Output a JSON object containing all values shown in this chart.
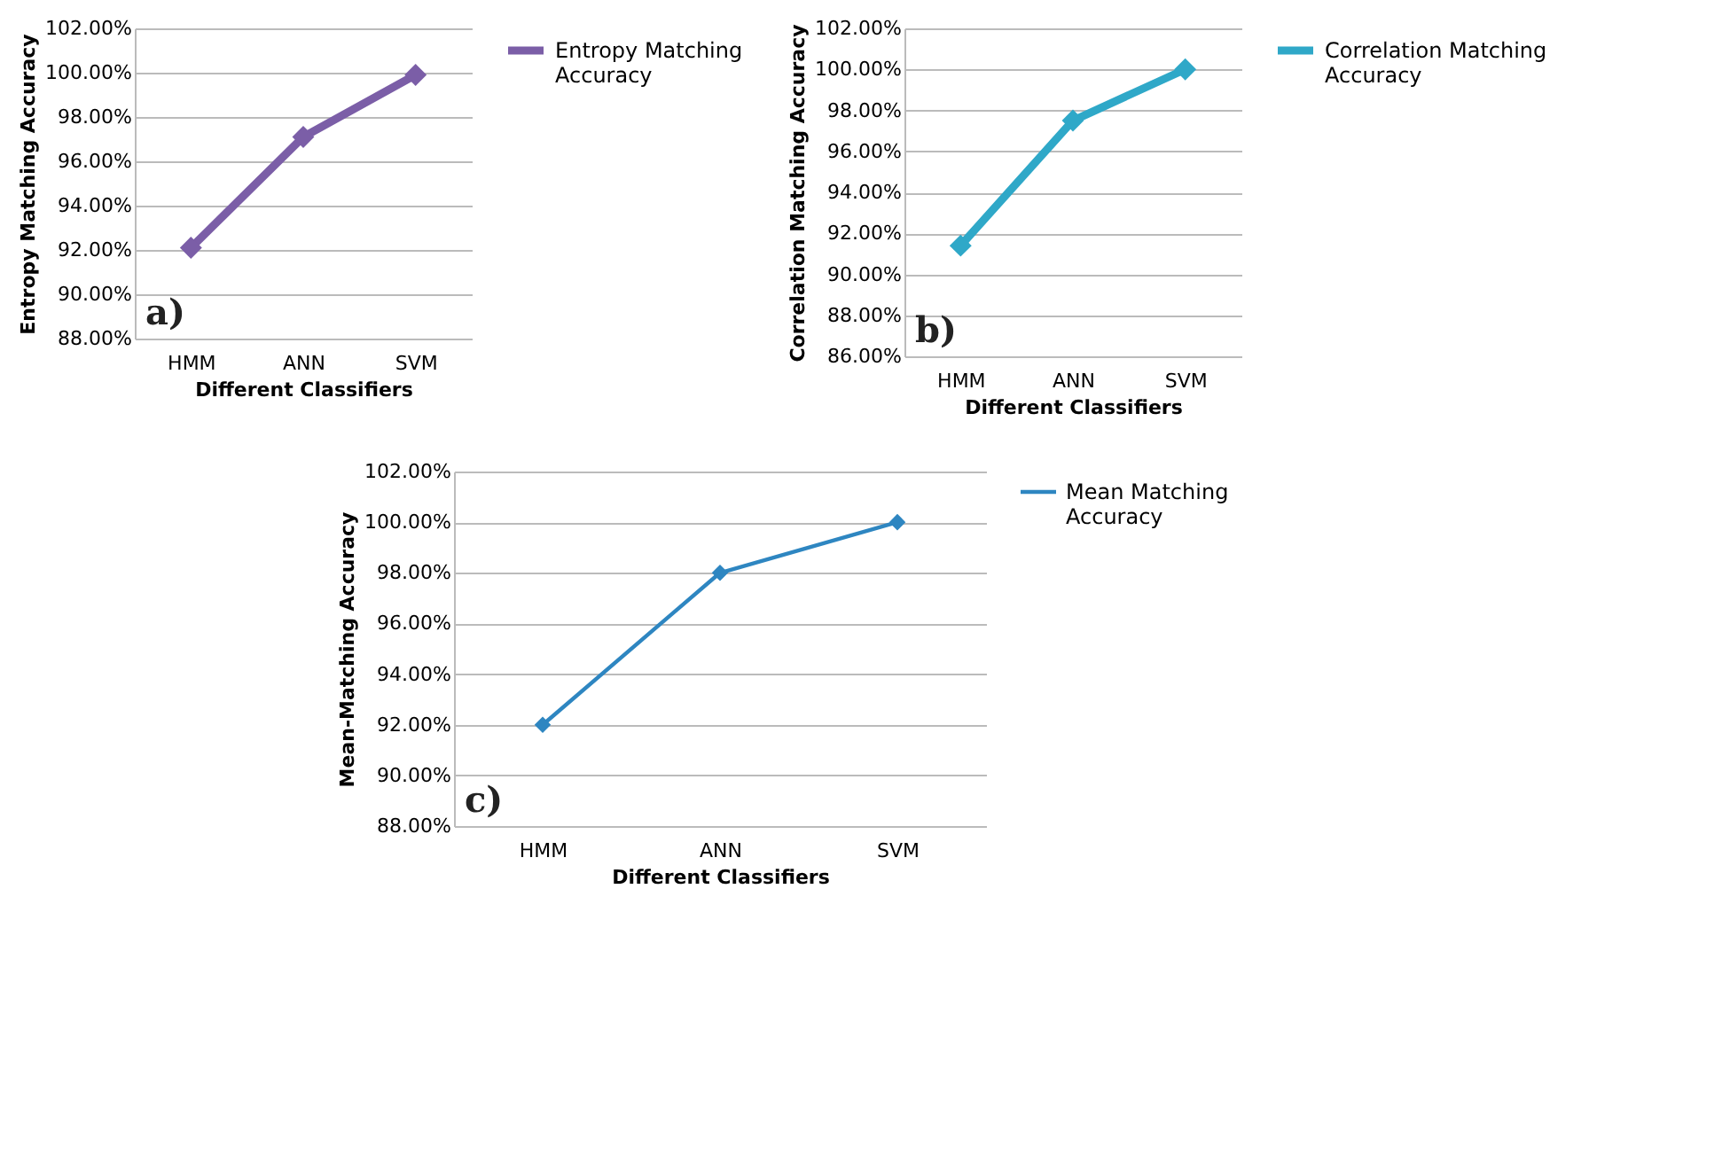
{
  "chart_data": [
    {
      "type": "line",
      "categories": [
        "HMM",
        "ANN",
        "SVM"
      ],
      "xlabel": "Different Classifiers",
      "ylabel": "Entropy Matching Accuracy",
      "series": [
        {
          "name": "Entropy Matching Accuracy",
          "color": "#7b5ea7",
          "values": [
            92.1,
            97.1,
            99.9
          ]
        }
      ],
      "ylim": [
        88,
        102
      ],
      "yticks": [
        {
          "value": 88,
          "label": "88.00%"
        },
        {
          "value": 90,
          "label": "90.00%"
        },
        {
          "value": 92,
          "label": "92.00%"
        },
        {
          "value": 94,
          "label": "94.00%"
        },
        {
          "value": 96,
          "label": "96.00%"
        },
        {
          "value": 98,
          "label": "98.00%"
        },
        {
          "value": 100,
          "label": "100.00%"
        },
        {
          "value": 102,
          "label": "102.00%"
        }
      ],
      "grid": "y",
      "legend": "right",
      "marker": "diamond",
      "annotations": [
        "a)"
      ]
    },
    {
      "type": "line",
      "categories": [
        "HMM",
        "ANN",
        "SVM"
      ],
      "xlabel": "Different Classifiers",
      "ylabel": "Correlation Matching Accuracy",
      "series": [
        {
          "name": "Correlation Matching Accuracy",
          "color": "#2fa8c8",
          "values": [
            91.4,
            97.5,
            100.0
          ]
        }
      ],
      "ylim": [
        86,
        102
      ],
      "yticks": [
        {
          "value": 86,
          "label": "86.00%"
        },
        {
          "value": 88,
          "label": "88.00%"
        },
        {
          "value": 90,
          "label": "90.00%"
        },
        {
          "value": 92,
          "label": "92.00%"
        },
        {
          "value": 94,
          "label": "94.00%"
        },
        {
          "value": 96,
          "label": "96.00%"
        },
        {
          "value": 98,
          "label": "98.00%"
        },
        {
          "value": 100,
          "label": "100.00%"
        },
        {
          "value": 102,
          "label": "102.00%"
        }
      ],
      "grid": "y",
      "legend": "right",
      "marker": "diamond",
      "annotations": [
        "b)"
      ]
    },
    {
      "type": "line",
      "categories": [
        "HMM",
        "ANN",
        "SVM"
      ],
      "xlabel": "Different Classifiers",
      "ylabel": "Mean-Matching Accuracy",
      "series": [
        {
          "name": "Mean Matching Accuracy",
          "color": "#2e86c1",
          "values": [
            92.0,
            98.0,
            100.0
          ]
        }
      ],
      "ylim": [
        88,
        102
      ],
      "yticks": [
        {
          "value": 88,
          "label": "88.00%"
        },
        {
          "value": 90,
          "label": "90.00%"
        },
        {
          "value": 92,
          "label": "92.00%"
        },
        {
          "value": 94,
          "label": "94.00%"
        },
        {
          "value": 96,
          "label": "96.00%"
        },
        {
          "value": 98,
          "label": "98.00%"
        },
        {
          "value": 100,
          "label": "100.00%"
        },
        {
          "value": 102,
          "label": "102.00%"
        }
      ],
      "grid": "y",
      "legend": "right",
      "marker": "diamond",
      "annotations": [
        "c)"
      ]
    }
  ]
}
